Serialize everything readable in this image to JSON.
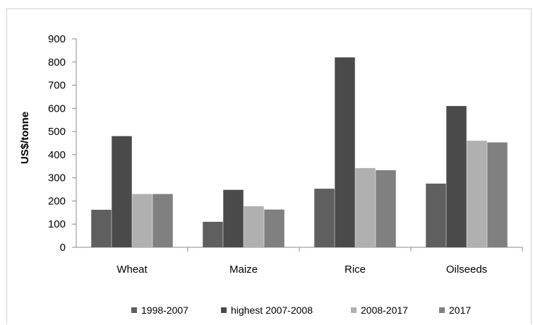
{
  "chart_data": {
    "type": "bar",
    "title": "",
    "xlabel": "",
    "ylabel": "US$/tonne",
    "ylim": [
      0,
      900
    ],
    "yticks": [
      0,
      100,
      200,
      300,
      400,
      500,
      600,
      700,
      800,
      900
    ],
    "categories": [
      "Wheat",
      "Maize",
      "Rice",
      "Oilseeds"
    ],
    "series": [
      {
        "name": "1998-2007",
        "color": "#5f5f5f",
        "values": [
          162,
          110,
          253,
          275
        ]
      },
      {
        "name": "highest 2007-2008",
        "color": "#4a4a4a",
        "values": [
          480,
          248,
          820,
          610
        ]
      },
      {
        "name": "2008-2017",
        "color": "#b0b0b0",
        "values": [
          230,
          177,
          342,
          460
        ]
      },
      {
        "name": "2017",
        "color": "#808080",
        "values": [
          230,
          163,
          333,
          453
        ]
      }
    ],
    "grid": false,
    "legend_position": "bottom"
  }
}
